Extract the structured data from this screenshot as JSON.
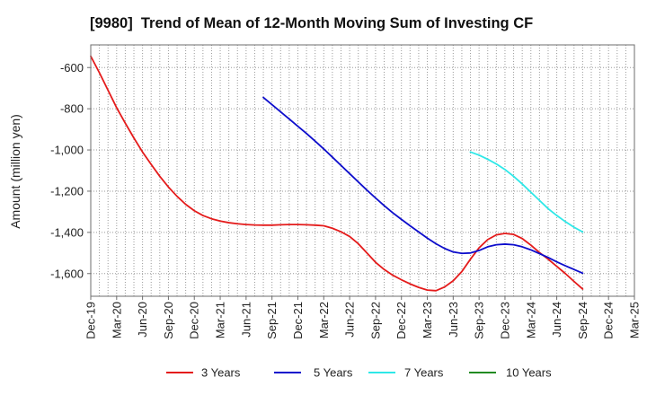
{
  "chart_data": {
    "type": "line",
    "title": "[9980]  Trend of Mean of 12-Month Moving Sum of Investing CF",
    "ylabel": "Amount (million yen)",
    "xlim": [
      "2019-12",
      "2025-03"
    ],
    "x_ticks": [
      "Dec-19",
      "Mar-20",
      "Jun-20",
      "Sep-20",
      "Dec-20",
      "Mar-21",
      "Jun-21",
      "Sep-21",
      "Dec-21",
      "Mar-22",
      "Jun-22",
      "Sep-22",
      "Dec-22",
      "Mar-23",
      "Jun-23",
      "Sep-23",
      "Dec-23",
      "Mar-24",
      "Jun-24",
      "Sep-24",
      "Dec-24",
      "Mar-25"
    ],
    "ylim": [
      -1710,
      -490
    ],
    "y_ticks": [
      -600,
      -800,
      -1000,
      -1200,
      -1400,
      -1600
    ],
    "y_tick_labels": [
      "-600",
      "-800",
      "-1,000",
      "-1,200",
      "-1,400",
      "-1,600"
    ],
    "grid": true,
    "legend_position": "bottom",
    "series": [
      {
        "name": "3 Years",
        "color": "#e41b1b",
        "start": "2019-12",
        "values": [
          -545,
          -625,
          -710,
          -795,
          -870,
          -942,
          -1010,
          -1070,
          -1128,
          -1180,
          -1225,
          -1264,
          -1295,
          -1318,
          -1334,
          -1345,
          -1353,
          -1358,
          -1362,
          -1364,
          -1365,
          -1365,
          -1363,
          -1362,
          -1362,
          -1363,
          -1365,
          -1368,
          -1380,
          -1397,
          -1420,
          -1455,
          -1500,
          -1545,
          -1580,
          -1608,
          -1630,
          -1650,
          -1667,
          -1680,
          -1683,
          -1665,
          -1635,
          -1590,
          -1530,
          -1475,
          -1435,
          -1412,
          -1405,
          -1410,
          -1430,
          -1462,
          -1498,
          -1530,
          -1565,
          -1600,
          -1638,
          -1675
        ]
      },
      {
        "name": "5 Years",
        "color": "#0d0dcc",
        "start": "2021-08",
        "values": [
          -745,
          -780,
          -815,
          -850,
          -885,
          -920,
          -957,
          -995,
          -1035,
          -1075,
          -1115,
          -1155,
          -1195,
          -1233,
          -1270,
          -1305,
          -1337,
          -1368,
          -1398,
          -1428,
          -1455,
          -1478,
          -1495,
          -1502,
          -1500,
          -1488,
          -1470,
          -1460,
          -1457,
          -1460,
          -1470,
          -1485,
          -1503,
          -1522,
          -1543,
          -1562,
          -1580,
          -1598
        ]
      },
      {
        "name": "7 Years",
        "color": "#2ee8e8",
        "start": "2023-08",
        "values": [
          -1010,
          -1025,
          -1045,
          -1068,
          -1095,
          -1128,
          -1165,
          -1205,
          -1245,
          -1285,
          -1318,
          -1348,
          -1375,
          -1398
        ]
      },
      {
        "name": "10 Years",
        "color": "#228b22",
        "start": null,
        "values": []
      }
    ]
  }
}
